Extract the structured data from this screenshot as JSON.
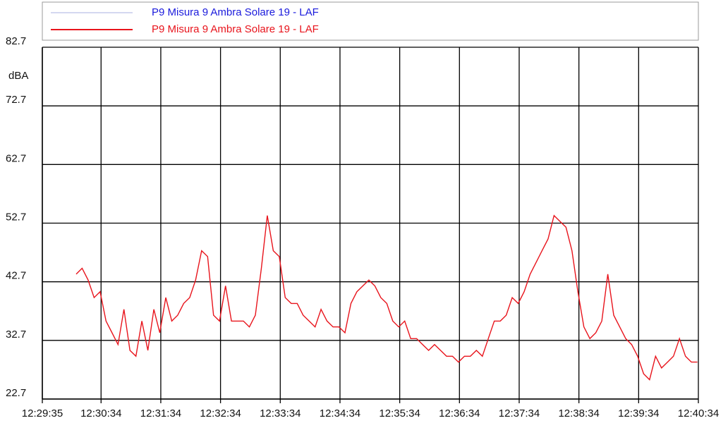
{
  "chart_data": {
    "type": "line",
    "y_label": "dBA",
    "x": [
      "12:30:09",
      "12:30:15",
      "12:30:21",
      "12:30:27",
      "12:30:33",
      "12:30:39",
      "12:30:45",
      "12:30:51",
      "12:30:57",
      "12:31:03",
      "12:31:09",
      "12:31:15",
      "12:31:21",
      "12:31:27",
      "12:31:33",
      "12:31:39",
      "12:31:45",
      "12:31:51",
      "12:31:57",
      "12:32:03",
      "12:32:09",
      "12:32:15",
      "12:32:21",
      "12:32:27",
      "12:32:33",
      "12:32:39",
      "12:32:45",
      "12:32:51",
      "12:32:57",
      "12:33:03",
      "12:33:09",
      "12:33:15",
      "12:33:21",
      "12:33:27",
      "12:33:33",
      "12:33:39",
      "12:33:45",
      "12:33:51",
      "12:33:57",
      "12:34:03",
      "12:34:09",
      "12:34:15",
      "12:34:21",
      "12:34:27",
      "12:34:33",
      "12:34:39",
      "12:34:45",
      "12:34:51",
      "12:34:57",
      "12:35:03",
      "12:35:09",
      "12:35:15",
      "12:35:21",
      "12:35:27",
      "12:35:33",
      "12:35:39",
      "12:35:45",
      "12:35:51",
      "12:35:57",
      "12:36:03",
      "12:36:09",
      "12:36:15",
      "12:36:21",
      "12:36:27",
      "12:36:33",
      "12:36:39",
      "12:36:45",
      "12:36:51",
      "12:36:57",
      "12:37:03",
      "12:37:09",
      "12:37:15",
      "12:37:21",
      "12:37:27",
      "12:37:33",
      "12:37:39",
      "12:37:45",
      "12:37:51",
      "12:37:57",
      "12:38:03",
      "12:38:09",
      "12:38:15",
      "12:38:21",
      "12:38:27",
      "12:38:33",
      "12:38:39",
      "12:38:45",
      "12:38:51",
      "12:38:57",
      "12:39:03",
      "12:39:09",
      "12:39:15",
      "12:39:21",
      "12:39:27",
      "12:39:33",
      "12:39:39",
      "12:39:45",
      "12:39:51",
      "12:39:57",
      "12:40:03",
      "12:40:09",
      "12:40:15",
      "12:40:21",
      "12:40:27",
      "12:40:33"
    ],
    "series": [
      {
        "name": "P9 Misura 9 Ambra Solare 19 - LAF",
        "color": "#aab0e0",
        "text_color": "#1a1adc",
        "values": [
          null,
          null,
          null,
          null,
          null,
          null,
          null,
          null,
          null,
          null,
          null,
          null,
          null,
          null,
          null,
          null,
          null,
          null,
          null,
          null,
          null,
          null,
          null,
          null,
          null,
          null,
          null,
          null,
          null,
          null,
          null,
          null,
          null,
          null,
          null,
          null,
          null,
          null,
          null,
          null,
          null,
          null,
          null,
          null,
          null,
          null,
          null,
          null,
          null,
          null,
          null,
          null,
          null,
          null,
          null,
          null,
          null,
          null,
          null,
          null,
          null,
          null,
          null,
          null,
          null,
          null,
          null,
          null,
          null,
          null,
          null,
          null,
          null,
          null,
          null,
          null,
          null,
          null,
          null,
          null,
          null,
          null,
          null,
          null,
          null,
          null,
          null,
          null,
          null,
          null,
          null,
          null,
          null,
          null,
          null,
          null,
          null,
          null,
          null,
          null,
          null,
          null,
          null,
          null,
          null
        ]
      },
      {
        "name": "P9 Misura 9 Ambra Solare 19 - LAF",
        "color": "#e8141c",
        "text_color": "#e8141c",
        "values": [
          44,
          45,
          43,
          40,
          41,
          36,
          34,
          32,
          38,
          31,
          30,
          36,
          31,
          38,
          34,
          40,
          36,
          37,
          39,
          40,
          43,
          48,
          47,
          37,
          36,
          42,
          36,
          36,
          36,
          35,
          37,
          45,
          54,
          48,
          47,
          40,
          39,
          39,
          37,
          36,
          35,
          38,
          36,
          35,
          35,
          34,
          39,
          41,
          42,
          43,
          42,
          40,
          39,
          36,
          35,
          36,
          33,
          33,
          32,
          31,
          32,
          31,
          30,
          30,
          29,
          30,
          30,
          31,
          30,
          33,
          36,
          36,
          37,
          40,
          39,
          41,
          44,
          46,
          48,
          50,
          54,
          53,
          52,
          48,
          41,
          35,
          33,
          34,
          36,
          44,
          37,
          35,
          33,
          32,
          30,
          27,
          26,
          30,
          28,
          29,
          30,
          33,
          30,
          29,
          29
        ]
      }
    ],
    "xlim": [
      "12:29:35",
      "12:40:34"
    ],
    "xticks": [
      "12:29:35",
      "12:30:34",
      "12:31:34",
      "12:32:34",
      "12:33:34",
      "12:34:34",
      "12:35:34",
      "12:36:34",
      "12:37:34",
      "12:38:34",
      "12:39:34",
      "12:40:34"
    ],
    "ylim": [
      22.7,
      82.7
    ],
    "yticks": [
      22.7,
      32.7,
      42.7,
      52.7,
      62.7,
      72.7,
      82.7
    ],
    "grid": true
  }
}
